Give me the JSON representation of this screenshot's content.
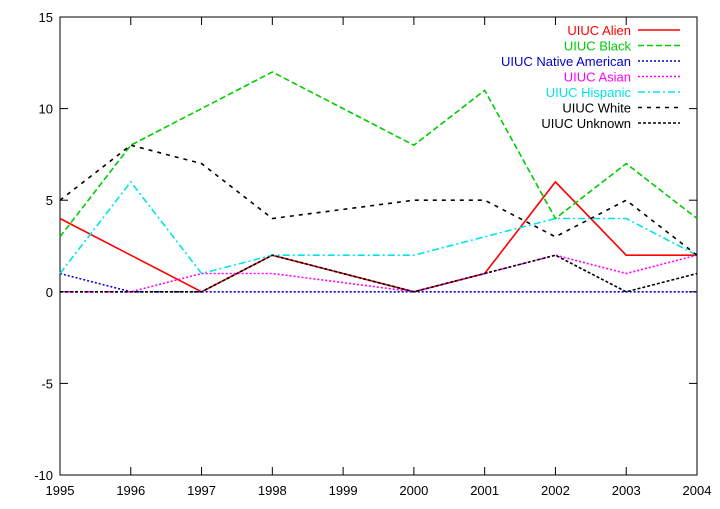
{
  "chart_data": {
    "type": "line",
    "x": [
      1995,
      1996,
      1997,
      1998,
      1999,
      2000,
      2001,
      2002,
      2003,
      2004
    ],
    "xticks": [
      1995,
      1996,
      1997,
      1998,
      1999,
      2000,
      2001,
      2002,
      2003,
      2004
    ],
    "yticks": [
      -10,
      -5,
      0,
      5,
      10,
      15
    ],
    "xlim": [
      1995,
      2004
    ],
    "ylim": [
      -10,
      15
    ],
    "grid": false,
    "legend_position": "top-right",
    "series": [
      {
        "name": "UIUC Alien",
        "color": "#ff0000",
        "dash": "solid",
        "values": [
          4,
          2,
          0,
          2,
          1,
          0,
          1,
          6,
          2,
          2
        ]
      },
      {
        "name": "UIUC Black",
        "color": "#00cc00",
        "dash": "dashed",
        "values": [
          3,
          8,
          10,
          12,
          10,
          8,
          11,
          4,
          7,
          4
        ]
      },
      {
        "name": "UIUC Native American",
        "color": "#0000cc",
        "dash": "dotted",
        "values": [
          1,
          0,
          0,
          0,
          0,
          0,
          0,
          0,
          0,
          0
        ]
      },
      {
        "name": "UIUC Asian",
        "color": "#ff00ff",
        "dash": "dotted",
        "values": [
          0,
          0,
          1,
          1,
          0.5,
          0,
          1,
          2,
          1,
          2
        ]
      },
      {
        "name": "UIUC Hispanic",
        "color": "#00e5e5",
        "dash": "dashdot",
        "values": [
          1,
          6,
          1,
          2,
          2,
          2,
          3,
          4,
          4,
          2
        ]
      },
      {
        "name": "UIUC White",
        "color": "#000000",
        "dash": "sparse",
        "values": [
          5,
          8,
          7,
          4,
          4.5,
          5,
          5,
          3,
          5,
          2
        ]
      },
      {
        "name": "UIUC Unknown",
        "color": "#000000",
        "dash": "dense",
        "values": [
          0,
          0,
          0,
          2,
          1,
          0,
          1,
          2,
          0,
          1
        ]
      }
    ]
  }
}
